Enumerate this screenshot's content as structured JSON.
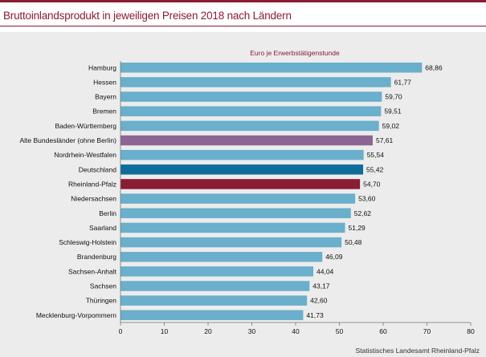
{
  "title": "Bruttoinlandsprodukt in jeweiligen Preisen 2018 nach Ländern",
  "source": "Statistisches Landesamt Rheinland-Pfalz",
  "colors": {
    "accent": "#8a1c33",
    "default_bar": "#6aafcc",
    "highlight_purple": "#8b6593",
    "highlight_blue": "#0e6d9b",
    "highlight_red": "#8a1c33",
    "panel_background": "#ececec"
  },
  "chart_data": {
    "type": "bar",
    "orientation": "horizontal",
    "series_label": "Euro je Erwerbstätigenstunde",
    "categories": [
      "Hamburg",
      "Hessen",
      "Bayern",
      "Bremen",
      "Baden-Württemberg",
      "Alte Bundesländer (ohne Berlin)",
      "Nordrhein-Westfalen",
      "Deutschland",
      "Rheinland-Pfalz",
      "Niedersachsen",
      "Berlin",
      "Saarland",
      "Schleswig-Holstein",
      "Brandenburg",
      "Sachsen-Anhalt",
      "Sachsen",
      "Thüringen",
      "Mecklenburg-Vorpommern"
    ],
    "values": [
      68.86,
      61.77,
      59.7,
      59.51,
      59.02,
      57.61,
      55.54,
      55.42,
      54.7,
      53.6,
      52.62,
      51.29,
      50.48,
      46.09,
      44.04,
      43.17,
      42.6,
      41.73
    ],
    "value_labels": [
      "68,86",
      "61,77",
      "59,70",
      "59,51",
      "59,02",
      "57,61",
      "55,54",
      "55,42",
      "54,70",
      "53,60",
      "52,62",
      "51,29",
      "50,48",
      "46,09",
      "44,04",
      "43,17",
      "42,60",
      "41,73"
    ],
    "bar_colors": [
      "#6aafcc",
      "#6aafcc",
      "#6aafcc",
      "#6aafcc",
      "#6aafcc",
      "#8b6593",
      "#6aafcc",
      "#0e6d9b",
      "#8a1c33",
      "#6aafcc",
      "#6aafcc",
      "#6aafcc",
      "#6aafcc",
      "#6aafcc",
      "#6aafcc",
      "#6aafcc",
      "#6aafcc",
      "#6aafcc"
    ],
    "xlim": [
      0,
      80
    ],
    "xticks": [
      "0",
      "10",
      "20",
      "30",
      "40",
      "50",
      "60",
      "70",
      "80"
    ],
    "grid": false
  }
}
